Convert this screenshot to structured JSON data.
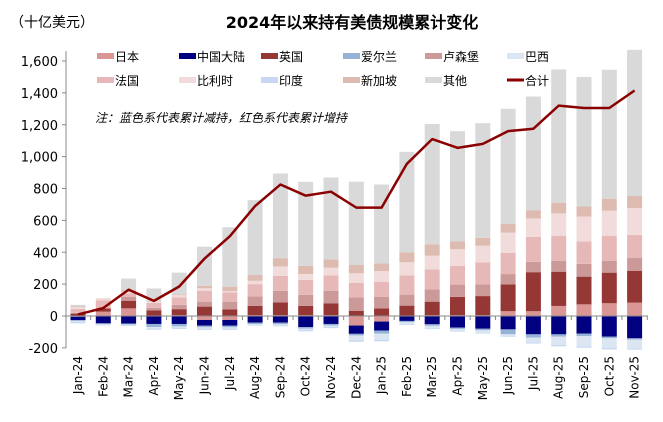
{
  "chart_data": {
    "type": "bar",
    "stacked": true,
    "title": "2024年以来持有美债规模累计变化",
    "unit_label": "（十亿美元）",
    "note": "注：蓝色系代表累计减持，红色系代表累计增持",
    "ylim": [
      -200,
      1600
    ],
    "yticks": [
      "-200",
      "0",
      "200",
      "400",
      "600",
      "800",
      "1,000",
      "1,200",
      "1,400",
      "1,600"
    ],
    "ytick_values": [
      -200,
      0,
      200,
      400,
      600,
      800,
      1000,
      1200,
      1400,
      1600
    ],
    "grid": false,
    "legend_position": "top",
    "categories": [
      "Jan-24",
      "Feb-24",
      "Mar-24",
      "Apr-24",
      "May-24",
      "Jun-24",
      "Jul-24",
      "Aug-24",
      "Sep-24",
      "Oct-24",
      "Nov-24",
      "Dec-24",
      "Jan-25",
      "Feb-25",
      "Mar-25",
      "Apr-25",
      "May-25",
      "Jun-25",
      "Jul-25",
      "Aug-25",
      "Sep-25",
      "Oct-25",
      "Nov-25"
    ],
    "series": [
      {
        "name": "日本",
        "color": "#d99694",
        "values": [
          -5,
          27,
          48,
          3,
          5,
          -25,
          -25,
          5,
          5,
          5,
          5,
          -60,
          -35,
          0,
          5,
          5,
          5,
          30,
          30,
          63,
          73,
          80,
          84
        ]
      },
      {
        "name": "中国大陆",
        "color": "#000080",
        "values": [
          -21,
          -46,
          -48,
          -50,
          -50,
          -36,
          -36,
          -42,
          -42,
          -70,
          -50,
          -52,
          -56,
          -31,
          -52,
          -73,
          -80,
          -84,
          -115,
          -115,
          -111,
          -130,
          -140
        ]
      },
      {
        "name": "英国",
        "color": "#953735",
        "values": [
          15,
          20,
          48,
          33,
          38,
          59,
          42,
          59,
          80,
          59,
          75,
          33,
          48,
          65,
          85,
          115,
          120,
          168,
          245,
          215,
          174,
          192,
          200
        ]
      },
      {
        "name": "爱尔兰",
        "color": "#95b3d7",
        "values": [
          -5,
          -5,
          -5,
          -20,
          -15,
          -10,
          -10,
          -8,
          -10,
          -10,
          -10,
          -10,
          -20,
          -8,
          -10,
          -8,
          -10,
          -31,
          -20,
          -15,
          -15,
          -10,
          -8
        ]
      },
      {
        "name": "卢森堡",
        "color": "#cc9999",
        "values": [
          5,
          0,
          25,
          15,
          27,
          31,
          48,
          59,
          73,
          69,
          77,
          84,
          73,
          69,
          77,
          77,
          73,
          65,
          65,
          69,
          80,
          75,
          82
        ]
      },
      {
        "name": "巴西",
        "color": "#dce6f2",
        "values": [
          -5,
          -3,
          -5,
          -8,
          -8,
          -8,
          -8,
          -5,
          -8,
          -8,
          -8,
          -30,
          -38,
          -12,
          -15,
          -12,
          -15,
          -10,
          -30,
          -52,
          -65,
          -60,
          -55
        ]
      },
      {
        "name": "法国",
        "color": "#e6b9b8",
        "values": [
          25,
          52,
          21,
          31,
          46,
          69,
          59,
          77,
          94,
          94,
          98,
          92,
          94,
          121,
          125,
          117,
          138,
          134,
          157,
          155,
          140,
          155,
          142
        ]
      },
      {
        "name": "比利时",
        "color": "#f2dcdb",
        "values": [
          10,
          8,
          10,
          8,
          15,
          15,
          8,
          21,
          59,
          36,
          48,
          59,
          67,
          82,
          86,
          105,
          105,
          126,
          115,
          142,
          157,
          159,
          170
        ]
      },
      {
        "name": "印度",
        "color": "#c6d9f1",
        "values": [
          -10,
          -5,
          -5,
          -8,
          -8,
          -8,
          -8,
          -5,
          -5,
          -8,
          -8,
          -10,
          -10,
          -5,
          -5,
          -5,
          -5,
          -5,
          -8,
          -8,
          -8,
          -10,
          -8
        ]
      },
      {
        "name": "新加坡",
        "color": "#ddbbb0",
        "values": [
          5,
          3,
          10,
          3,
          5,
          15,
          27,
          36,
          52,
          52,
          52,
          52,
          48,
          63,
          71,
          50,
          50,
          54,
          52,
          67,
          63,
          75,
          75
        ]
      },
      {
        "name": "其他",
        "color": "#d9d9d9",
        "values": [
          10,
          0,
          73,
          80,
          136,
          246,
          373,
          470,
          531,
          527,
          514,
          523,
          495,
          630,
          756,
          691,
          719,
          723,
          713,
          836,
          813,
          809,
          917
        ]
      }
    ],
    "line": {
      "name": "合计",
      "color": "#8b0000",
      "values": [
        10,
        50,
        165,
        95,
        185,
        360,
        500,
        690,
        825,
        755,
        780,
        680,
        680,
        955,
        1110,
        1055,
        1080,
        1160,
        1175,
        1320,
        1305,
        1305,
        1415
      ]
    }
  }
}
